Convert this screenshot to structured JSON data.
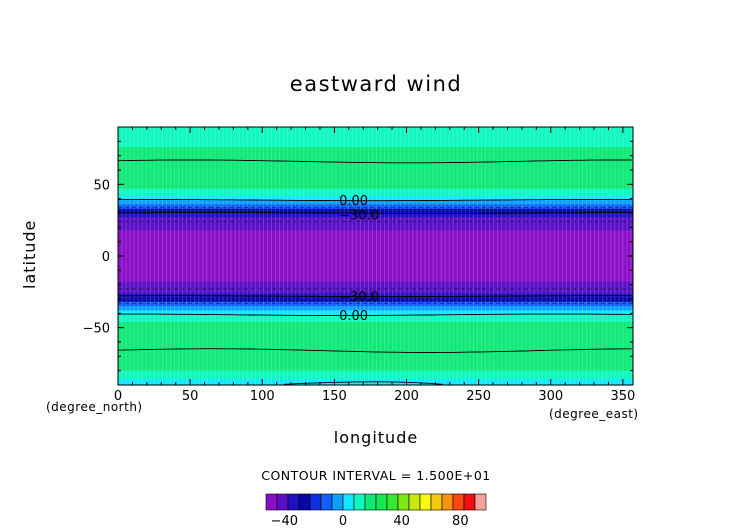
{
  "chart_data": {
    "type": "heatmap",
    "title": "eastward wind",
    "xlabel": "longitude",
    "ylabel": "latitude",
    "x_unit": "(degree_east)",
    "y_unit": "(degree_north)",
    "xlim": [
      0,
      357
    ],
    "ylim": [
      -90,
      90
    ],
    "x_ticks": [
      0,
      50,
      100,
      150,
      200,
      250,
      300,
      350
    ],
    "y_ticks": [
      -50,
      0,
      50
    ],
    "x_tick_labels": [
      "0",
      "50",
      "100",
      "150",
      "200",
      "250",
      "300",
      "350"
    ],
    "y_tick_labels": [
      "−50",
      "0",
      "50"
    ],
    "contour_labels": [
      {
        "text": "0.00",
        "lon": 120,
        "lat": 39
      },
      {
        "text": "−30.0",
        "lon": 120,
        "lat": 29
      },
      {
        "text": "−30.0",
        "lon": 120,
        "lat": -28
      },
      {
        "text": "0.00",
        "lon": 120,
        "lat": -41
      }
    ],
    "contour_interval_text": "CONTOUR INTERVAL = 1.500E+01",
    "latitude_profile": [
      {
        "lat": 90,
        "value": 5
      },
      {
        "lat": 82,
        "value": 10
      },
      {
        "lat": 76,
        "value": 15
      },
      {
        "lat": 70,
        "value": 18
      },
      {
        "lat": 64,
        "value": 22
      },
      {
        "lat": 57,
        "value": 22
      },
      {
        "lat": 52,
        "value": 18
      },
      {
        "lat": 47,
        "value": 12
      },
      {
        "lat": 42,
        "value": 5
      },
      {
        "lat": 39,
        "value": 0
      },
      {
        "lat": 36,
        "value": -8
      },
      {
        "lat": 33,
        "value": -18
      },
      {
        "lat": 30,
        "value": -28
      },
      {
        "lat": 27,
        "value": -36
      },
      {
        "lat": 24,
        "value": -42
      },
      {
        "lat": 18,
        "value": -45
      },
      {
        "lat": 10,
        "value": -46
      },
      {
        "lat": 0,
        "value": -46
      },
      {
        "lat": -10,
        "value": -46
      },
      {
        "lat": -18,
        "value": -45
      },
      {
        "lat": -23,
        "value": -42
      },
      {
        "lat": -26,
        "value": -36
      },
      {
        "lat": -29,
        "value": -28
      },
      {
        "lat": -32,
        "value": -18
      },
      {
        "lat": -35,
        "value": -8
      },
      {
        "lat": -38,
        "value": 0
      },
      {
        "lat": -41,
        "value": 5
      },
      {
        "lat": -46,
        "value": 12
      },
      {
        "lat": -52,
        "value": 18
      },
      {
        "lat": -58,
        "value": 22
      },
      {
        "lat": -65,
        "value": 22
      },
      {
        "lat": -72,
        "value": 18
      },
      {
        "lat": -80,
        "value": 12
      },
      {
        "lat": -86,
        "value": 8
      },
      {
        "lat": -90,
        "value": 5
      }
    ],
    "colorbar": {
      "min": -52.5,
      "max": 97.5,
      "tick_values": [
        -40,
        0,
        40,
        80
      ],
      "tick_labels": [
        "−40",
        "0",
        "40",
        "80"
      ],
      "colors": [
        "#8a10c8",
        "#5a10c8",
        "#2010c0",
        "#0808a8",
        "#1030e0",
        "#1060ff",
        "#0ea0ff",
        "#10e8ff",
        "#10f8c0",
        "#10e878",
        "#18e850",
        "#38e830",
        "#80e810",
        "#c8e810",
        "#f8f810",
        "#f8c810",
        "#f89010",
        "#f84810",
        "#f01010",
        "#f8a0a0"
      ]
    }
  }
}
